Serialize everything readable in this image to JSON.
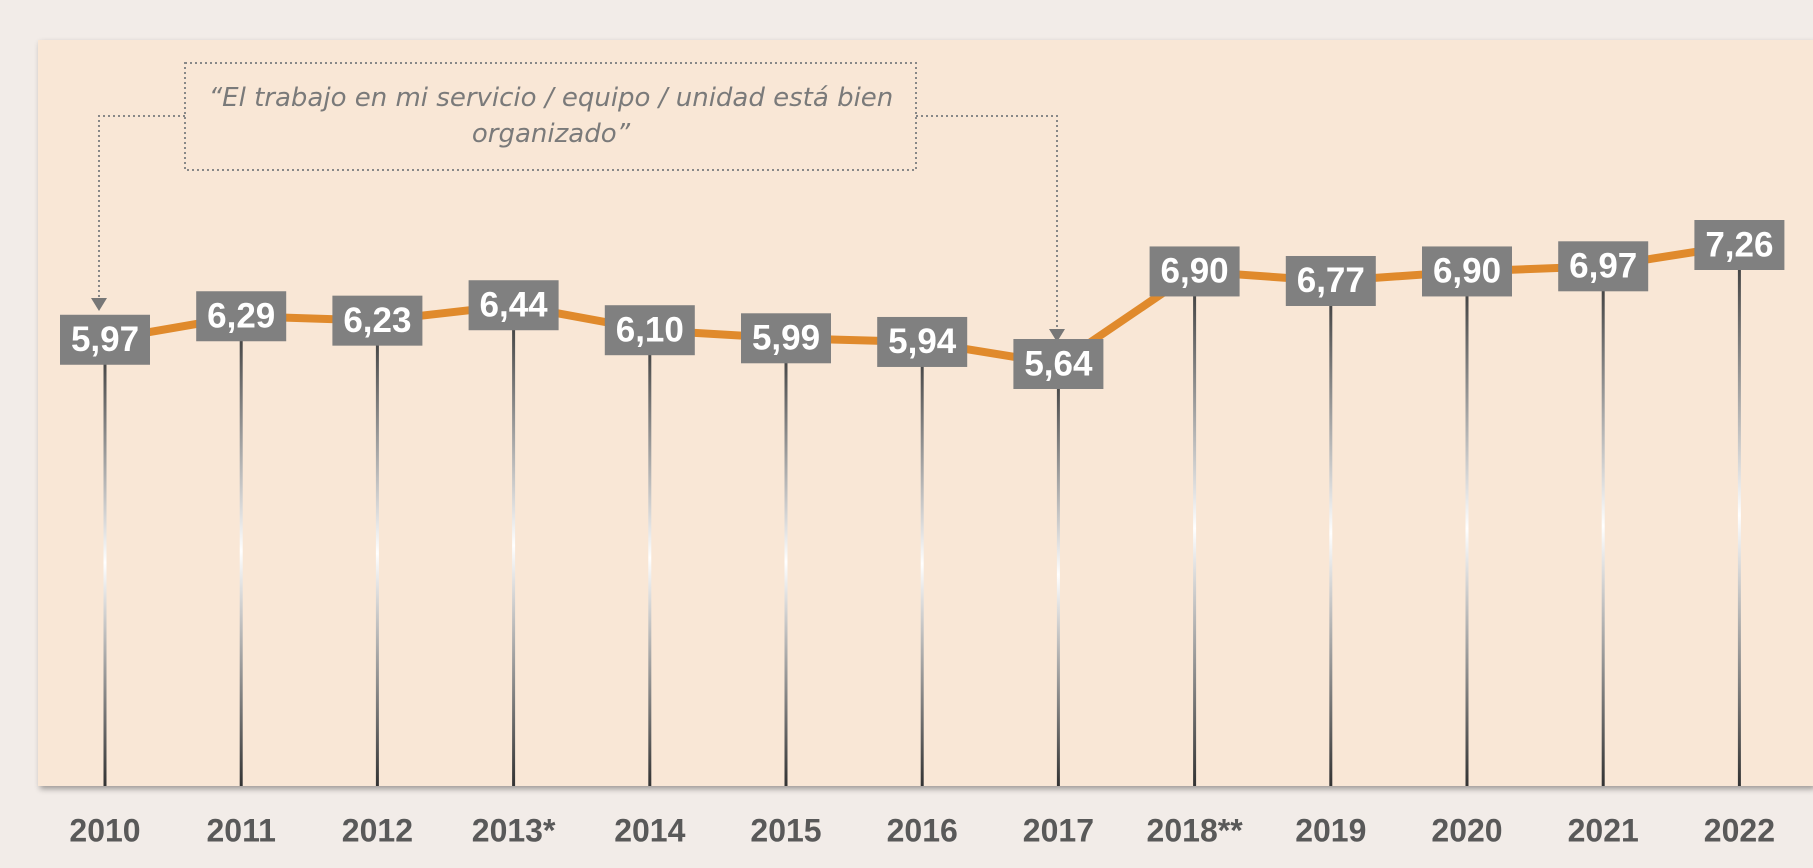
{
  "chart_data": {
    "type": "line",
    "annotation": "“El trabajo en mi servicio / equipo / unidad está bien organizado”",
    "categories": [
      "2010",
      "2011",
      "2012",
      "2013*",
      "2014",
      "2015",
      "2016",
      "2017",
      "2018**",
      "2019",
      "2020",
      "2021",
      "2022"
    ],
    "series": [
      {
        "color": "#e08a2c",
        "values": [
          5.97,
          6.29,
          6.23,
          6.44,
          6.1,
          5.99,
          5.94,
          5.64,
          6.9,
          6.77,
          6.9,
          6.97,
          7.26
        ],
        "value_labels": [
          "5,97",
          "6,29",
          "6,23",
          "6,44",
          "6,10",
          "5,99",
          "5,94",
          "5,64",
          "6,90",
          "6,77",
          "6,90",
          "6,97",
          "7,26"
        ]
      }
    ]
  }
}
